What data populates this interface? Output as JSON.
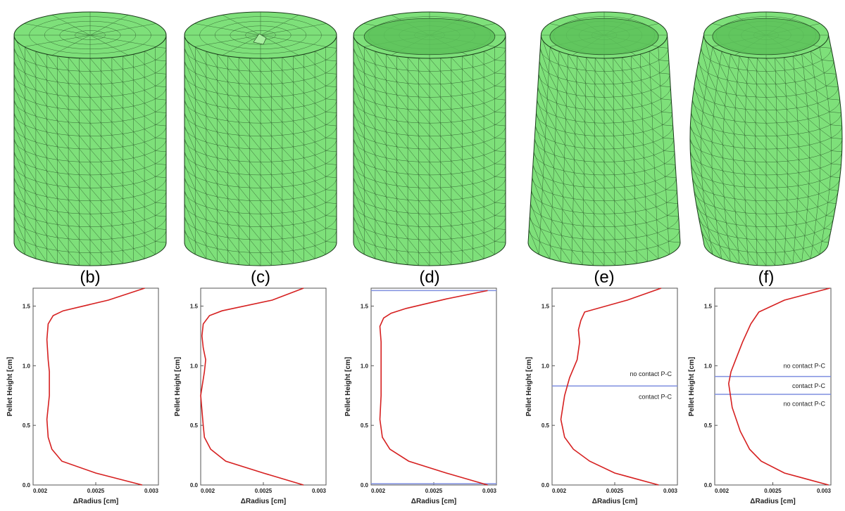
{
  "figure": {
    "panels": [
      {
        "label": "(b)",
        "shape": "cylinder"
      },
      {
        "label": "(c)",
        "shape": "cylinder"
      },
      {
        "label": "(d)",
        "shape": "dished cylinder"
      },
      {
        "label": "(e)",
        "shape": "tapered cylinder"
      },
      {
        "label": "(f)",
        "shape": "barrel"
      }
    ],
    "colors": {
      "mesh_fill": "#7ee07a",
      "mesh_line": "#1a3a1a",
      "curve": "#d62020",
      "hline": "#7f8fe0",
      "axis": "#555555"
    }
  },
  "chart_data": [
    {
      "type": "line",
      "xlabel": "ΔRadius [cm]",
      "ylabel": "Pellet Height [cm]",
      "xlim": [
        0.002,
        0.003
      ],
      "ylim": [
        0.0,
        1.65
      ],
      "xticks": [
        0.002,
        0.0025,
        0.003
      ],
      "xtick_labels": [
        "0.002",
        "0.0025",
        "0.003"
      ],
      "yticks": [
        0.0,
        0.5,
        1.0,
        1.5
      ],
      "ytick_labels": [
        "0.0",
        "0.5",
        "1.0",
        "1.5"
      ],
      "series": [
        {
          "x": [
            0.00287,
            0.0025,
            0.00223,
            0.00215,
            0.00212,
            0.00211,
            0.00213,
            0.00213,
            0.00212,
            0.00211,
            0.00212,
            0.00216,
            0.00224,
            0.0026,
            0.00289
          ],
          "y": [
            0.0,
            0.1,
            0.2,
            0.3,
            0.4,
            0.55,
            0.75,
            0.95,
            1.05,
            1.22,
            1.35,
            1.42,
            1.46,
            1.55,
            1.65
          ]
        }
      ],
      "hlines": [],
      "annotations": []
    },
    {
      "type": "line",
      "xlabel": "ΔRadius [cm]",
      "ylabel": "Pellet Height [cm]",
      "xlim": [
        0.002,
        0.003
      ],
      "ylim": [
        0.0,
        1.65
      ],
      "xticks": [
        0.002,
        0.0025,
        0.003
      ],
      "xtick_labels": [
        "0.002",
        "0.0025",
        "0.003"
      ],
      "yticks": [
        0.0,
        0.5,
        1.0,
        1.5
      ],
      "ytick_labels": [
        "0.0",
        "0.5",
        "1.0",
        "1.5"
      ],
      "series": [
        {
          "x": [
            0.00282,
            0.0025,
            0.0022,
            0.00208,
            0.00203,
            0.00202,
            0.002,
            0.00203,
            0.00204,
            0.00202,
            0.00201,
            0.00202,
            0.00207,
            0.00217,
            0.00257,
            0.00282
          ],
          "y": [
            0.0,
            0.1,
            0.2,
            0.3,
            0.4,
            0.5,
            0.75,
            0.95,
            1.05,
            1.15,
            1.25,
            1.35,
            1.42,
            1.46,
            1.55,
            1.65
          ]
        }
      ],
      "hlines": [],
      "annotations": []
    },
    {
      "type": "line",
      "xlabel": "ΔRadius [cm]",
      "ylabel": "Pellet Height [cm]",
      "xlim": [
        0.002,
        0.003
      ],
      "ylim": [
        0.0,
        1.65
      ],
      "xticks": [
        0.002,
        0.0025,
        0.003
      ],
      "xtick_labels": [
        "0.002",
        "0.0025",
        "0.003"
      ],
      "yticks": [
        0.0,
        0.5,
        1.0,
        1.5
      ],
      "ytick_labels": [
        "0.0",
        "0.5",
        "1.0",
        "1.5"
      ],
      "series": [
        {
          "x": [
            0.00293,
            0.0026,
            0.0023,
            0.00215,
            0.00209,
            0.00207,
            0.00208,
            0.00208,
            0.00208,
            0.00207,
            0.0021,
            0.00216,
            0.00228,
            0.0026,
            0.00293
          ],
          "y": [
            0.0,
            0.1,
            0.2,
            0.3,
            0.4,
            0.55,
            0.75,
            1.0,
            1.2,
            1.33,
            1.4,
            1.44,
            1.48,
            1.56,
            1.63
          ]
        }
      ],
      "hlines": [
        0.01,
        1.63
      ],
      "annotations": []
    },
    {
      "type": "line",
      "xlabel": "ΔRadius [cm]",
      "ylabel": "Pellet Height [cm]",
      "xlim": [
        0.002,
        0.003
      ],
      "ylim": [
        0.0,
        1.65
      ],
      "xticks": [
        0.002,
        0.0025,
        0.003
      ],
      "xtick_labels": [
        "0.002",
        "0.0025",
        "0.003"
      ],
      "yticks": [
        0.0,
        0.5,
        1.0,
        1.5
      ],
      "ytick_labels": [
        "0.0",
        "0.5",
        "1.0",
        "1.5"
      ],
      "series": [
        {
          "x": [
            0.00285,
            0.0025,
            0.0023,
            0.00217,
            0.0021,
            0.00207,
            0.0021,
            0.00214,
            0.0022,
            0.00222,
            0.00221,
            0.00223,
            0.00226,
            0.0026,
            0.00287
          ],
          "y": [
            0.0,
            0.1,
            0.2,
            0.3,
            0.4,
            0.55,
            0.75,
            0.9,
            1.05,
            1.2,
            1.3,
            1.38,
            1.45,
            1.55,
            1.65
          ]
        }
      ],
      "hlines": [
        0.83
      ],
      "annotations": [
        {
          "text": "no contact P-C",
          "y": 0.93
        },
        {
          "text": "contact P-C",
          "y": 0.74
        }
      ]
    },
    {
      "type": "line",
      "xlabel": "ΔRadius [cm]",
      "ylabel": "Pellet Height [cm]",
      "xlim": [
        0.002,
        0.003
      ],
      "ylim": [
        0.0,
        1.65
      ],
      "xticks": [
        0.002,
        0.0025,
        0.003
      ],
      "xtick_labels": [
        "0.002",
        "0.0025",
        "0.003"
      ],
      "yticks": [
        0.0,
        0.5,
        1.0,
        1.5
      ],
      "ytick_labels": [
        "0.0",
        "0.5",
        "1.0",
        "1.5"
      ],
      "series": [
        {
          "x": [
            0.00298,
            0.0026,
            0.0024,
            0.0023,
            0.00222,
            0.00215,
            0.00212,
            0.00214,
            0.00218,
            0.00224,
            0.00231,
            0.00238,
            0.0026,
            0.00299
          ],
          "y": [
            0.0,
            0.1,
            0.2,
            0.3,
            0.45,
            0.65,
            0.85,
            0.95,
            1.05,
            1.2,
            1.35,
            1.45,
            1.55,
            1.65
          ]
        }
      ],
      "hlines": [
        0.91,
        0.76
      ],
      "annotations": [
        {
          "text": "no contact P-C",
          "y": 1.0
        },
        {
          "text": "contact P-C",
          "y": 0.83
        },
        {
          "text": "no contact P-C",
          "y": 0.68
        }
      ]
    }
  ]
}
